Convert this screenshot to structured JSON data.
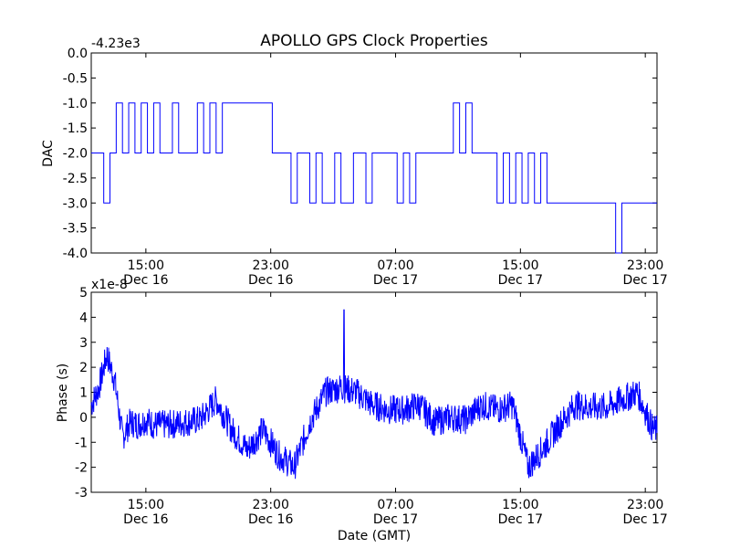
{
  "title": "APOLLO GPS Clock Properties",
  "chart_data": [
    {
      "type": "line",
      "name": "dac-plot",
      "ylabel": "DAC",
      "offset_label": "-4.23e3",
      "xlabel": "",
      "ylim": [
        -4.0,
        0.0
      ],
      "yticks": [
        "0.0",
        "-0.5",
        "-1.0",
        "-1.5",
        "-2.0",
        "-2.5",
        "-3.0",
        "-3.5",
        "-4.0"
      ],
      "xlim": [
        "Dec 16 11:30",
        "Dec 17 23:45"
      ],
      "xticks": [
        {
          "time": "15:00",
          "date": "Dec 16"
        },
        {
          "time": "23:00",
          "date": "Dec 16"
        },
        {
          "time": "07:00",
          "date": "Dec 17"
        },
        {
          "time": "15:00",
          "date": "Dec 17"
        },
        {
          "time": "23:00",
          "date": "Dec 17"
        }
      ],
      "color": "#0000ff",
      "series": [
        {
          "values_note_free": true,
          "x_hours": [
            0.0,
            0.4,
            0.8,
            1.2,
            1.6,
            2.0,
            2.4,
            2.8,
            3.2,
            3.6,
            4.0,
            4.4,
            4.8,
            5.2,
            5.6,
            6.0,
            6.4,
            6.8,
            7.2,
            7.6,
            8.0,
            8.4,
            8.8,
            9.2,
            9.6,
            10.0,
            10.4,
            10.8,
            11.2,
            11.6,
            12.0,
            12.4,
            12.8,
            13.2,
            13.6,
            14.0,
            14.4,
            14.8,
            15.2,
            15.6,
            16.0,
            16.4,
            16.8,
            17.2,
            17.6,
            18.0,
            18.4,
            18.8,
            19.2,
            19.6,
            20.0,
            20.4,
            20.8,
            21.2,
            21.6,
            22.0,
            22.4,
            22.8,
            23.2,
            23.6,
            24.0,
            24.4,
            24.8,
            25.2,
            25.6,
            26.0,
            26.4,
            26.8,
            27.2,
            27.6,
            28.0,
            28.4,
            28.8,
            29.2,
            29.6,
            30.0,
            30.4,
            30.8,
            31.2,
            31.6,
            32.0,
            32.4,
            32.8,
            33.2,
            33.6,
            34.0,
            34.4,
            34.8,
            35.2,
            35.6,
            36.0
          ],
          "values": [
            -2,
            -2,
            -3,
            -2,
            -1,
            -2,
            -1,
            -2,
            -1,
            -2,
            -1,
            -2,
            -2,
            -1,
            -2,
            -2,
            -2,
            -1,
            -2,
            -1,
            -2,
            -1,
            -1,
            -1,
            -1,
            -1,
            -1,
            -1,
            -1,
            -2,
            -2,
            -2,
            -3,
            -2,
            -2,
            -3,
            -2,
            -3,
            -3,
            -2,
            -3,
            -3,
            -2,
            -2,
            -3,
            -2,
            -2,
            -2,
            -2,
            -3,
            -2,
            -3,
            -2,
            -2,
            -2,
            -2,
            -2,
            -2,
            -1,
            -2,
            -1,
            -2,
            -2,
            -2,
            -2,
            -3,
            -2,
            -3,
            -2,
            -3,
            -2,
            -3,
            -2,
            -3,
            -3,
            -3,
            -3,
            -3,
            -3,
            -3,
            -3,
            -3,
            -3,
            -3,
            -4,
            -3,
            -3,
            -3,
            -3,
            -3,
            -3
          ]
        }
      ]
    },
    {
      "type": "line",
      "name": "phase-plot",
      "ylabel": "Phase (s)",
      "xlabel": "Date (GMT)",
      "offset_label": "x1e-8",
      "ylim": [
        -3,
        5
      ],
      "yticks": [
        "5",
        "4",
        "3",
        "2",
        "1",
        "0",
        "-1",
        "-2",
        "-3"
      ],
      "xlim": [
        "Dec 16 11:30",
        "Dec 17 23:45"
      ],
      "xticks": [
        {
          "time": "15:00",
          "date": "Dec 16"
        },
        {
          "time": "23:00",
          "date": "Dec 16"
        },
        {
          "time": "07:00",
          "date": "Dec 17"
        },
        {
          "time": "15:00",
          "date": "Dec 17"
        },
        {
          "time": "23:00",
          "date": "Dec 17"
        }
      ],
      "color": "#0000ff",
      "series": [
        {
          "x_hours": [
            0.0,
            0.5,
            1.0,
            1.5,
            2.0,
            2.5,
            3.0,
            3.5,
            4.0,
            5.0,
            6.0,
            7.0,
            8.0,
            9.0,
            10.0,
            11.0,
            12.0,
            13.0,
            14.0,
            15.0,
            16.0,
            17.0,
            18.0,
            19.0,
            20.0,
            21.0,
            22.0,
            23.0,
            24.0,
            25.0,
            26.0,
            27.0,
            28.0,
            29.0,
            30.0,
            31.0,
            32.0,
            33.0,
            34.0,
            35.0,
            36.0
          ],
          "values": [
            0.5,
            1.2,
            2.5,
            1.5,
            -0.8,
            -0.2,
            -0.3,
            -0.1,
            -0.3,
            -0.3,
            -0.2,
            -0.1,
            0.7,
            -0.5,
            -1.3,
            -0.5,
            -1.5,
            -2.0,
            -0.2,
            1.0,
            1.2,
            1.0,
            0.5,
            0.3,
            0.3,
            0.5,
            -0.2,
            0.0,
            -0.1,
            0.5,
            0.3,
            0.5,
            -2.0,
            -1.2,
            -0.3,
            0.5,
            0.4,
            0.4,
            0.7,
            1.0,
            -0.5
          ]
        }
      ]
    }
  ]
}
